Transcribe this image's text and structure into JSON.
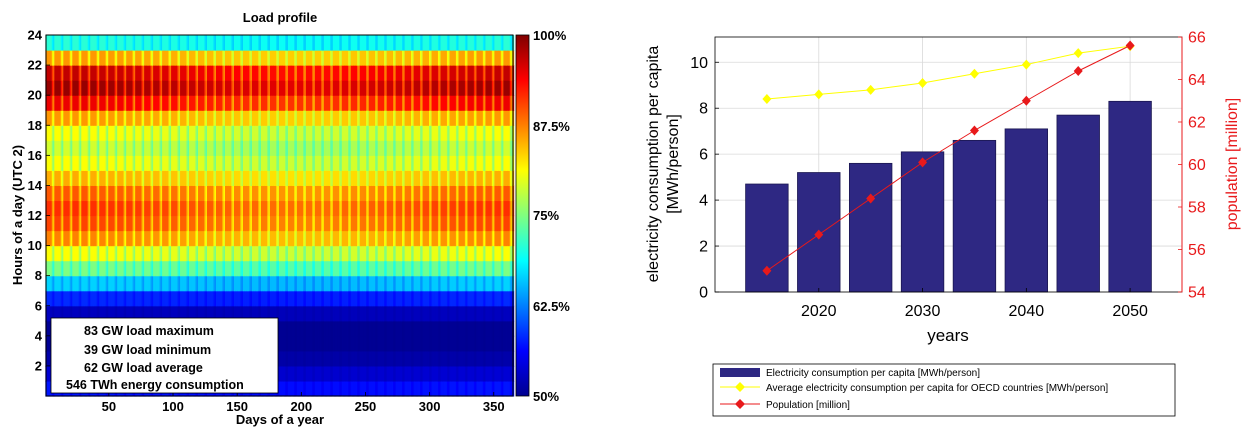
{
  "chart_data": [
    {
      "type": "heatmap",
      "title": "Load profile",
      "xlabel": "Days of a year",
      "ylabel": "Hours of a day (UTC 2)",
      "xlim": [
        1,
        365
      ],
      "ylim": [
        0,
        24
      ],
      "x_ticks": [
        "50",
        "100",
        "150",
        "200",
        "250",
        "300",
        "350"
      ],
      "y_ticks": [
        "2",
        "4",
        "6",
        "8",
        "10",
        "12",
        "14",
        "16",
        "18",
        "20",
        "22",
        "24"
      ],
      "colorbar": {
        "range": [
          50,
          100
        ],
        "ticks": [
          "100%",
          "87.5%",
          "75%",
          "62.5%",
          "50%"
        ],
        "colormap": "jet"
      },
      "annotations": [
        "83 GW load maximum",
        "39 GW load minimum",
        "62 GW load average",
        "546 TWh energy consumption"
      ],
      "hourly_profile_percent": [
        57,
        54,
        52,
        51,
        51,
        53,
        58,
        66,
        74,
        80,
        86,
        89,
        90,
        88,
        84,
        80,
        78,
        80,
        85,
        93,
        97,
        95,
        85,
        70
      ],
      "weekly_profile_factor": [
        1.0,
        1.0,
        1.0,
        1.0,
        1.0,
        0.88,
        0.84
      ]
    },
    {
      "type": "bar",
      "xlabel": "years",
      "x_ticks": [
        "2020",
        "2030",
        "2040",
        "2050"
      ],
      "xlim": [
        2010,
        2055
      ],
      "y_ticks": [
        "0",
        "2",
        "4",
        "6",
        "8",
        "10"
      ],
      "ylim": [
        0,
        11.1
      ],
      "y2_ticks": [
        "54",
        "56",
        "58",
        "60",
        "62",
        "64",
        "66"
      ],
      "y2lim": [
        54,
        66
      ],
      "ylabel_lines": [
        "electricity consumption per capita",
        "[MWh/person]"
      ],
      "y2label": "population [million]",
      "x": [
        2015,
        2020,
        2025,
        2030,
        2035,
        2040,
        2045,
        2050
      ],
      "series": [
        {
          "name": "Electricity consumption per capita  [MWh/person]",
          "kind": "bar",
          "axis": "left",
          "color": "#2e2883",
          "values": [
            4.7,
            5.2,
            5.6,
            6.1,
            6.6,
            7.1,
            7.7,
            8.3
          ]
        },
        {
          "name": "Average electricity consumption per capita for OECD countries [MWh/person]",
          "kind": "line",
          "axis": "left",
          "color": "#ffff00",
          "values": [
            8.4,
            8.6,
            8.8,
            9.1,
            9.5,
            9.9,
            10.4,
            10.7
          ]
        },
        {
          "name": "Population [million]",
          "kind": "line",
          "axis": "right",
          "color": "#e8191b",
          "values": [
            55.0,
            56.7,
            58.4,
            60.1,
            61.6,
            63.0,
            64.4,
            65.6
          ]
        }
      ]
    }
  ]
}
